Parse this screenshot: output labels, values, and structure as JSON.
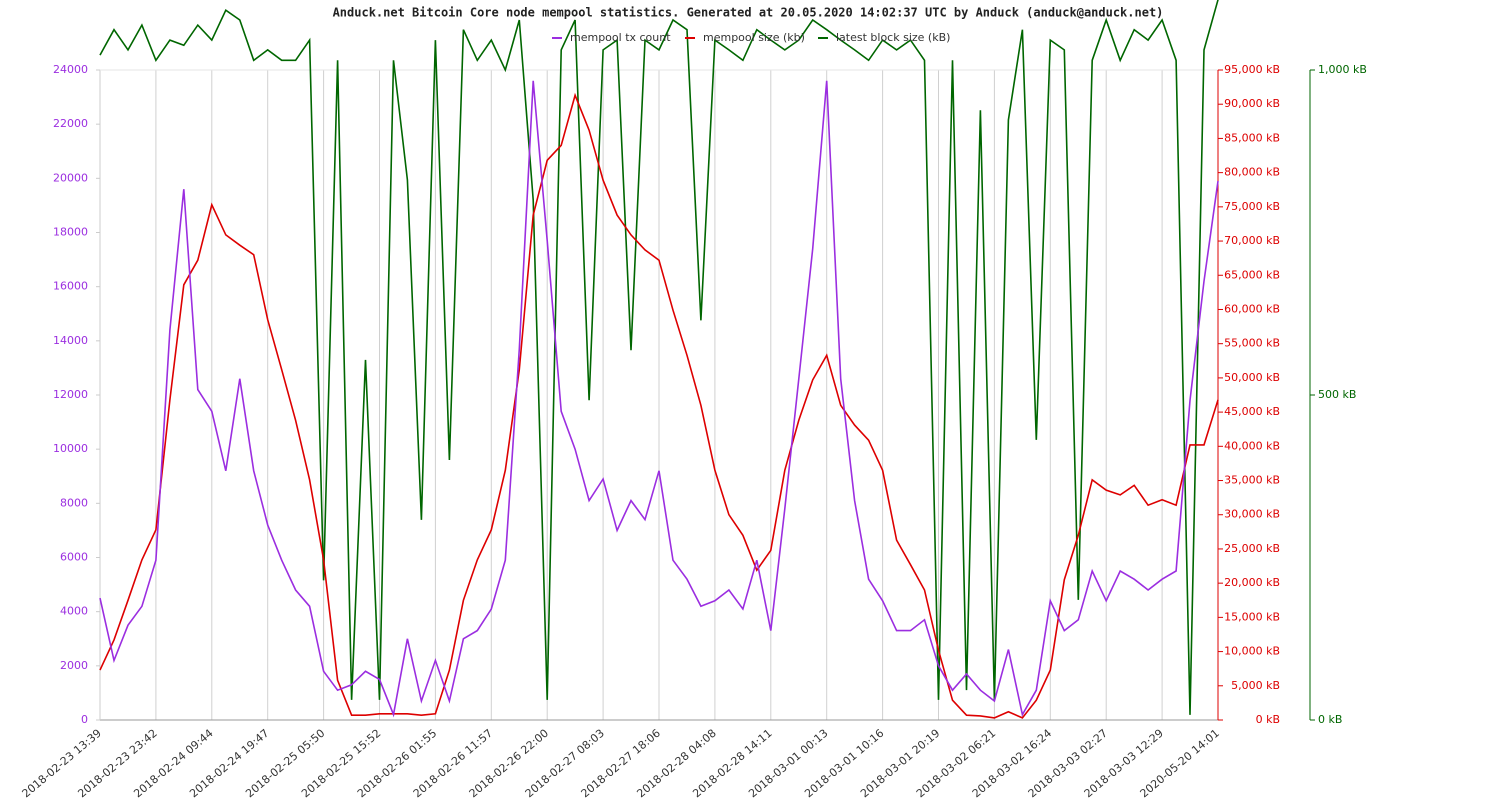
{
  "chart_data": {
    "type": "line",
    "title": "Anduck.net Bitcoin Core node mempool statistics. Generated at 20.05.2020 14:02:37 UTC by Anduck (anduck@anduck.net)",
    "categories": [
      "2018-02-23 13:39",
      null,
      null,
      null,
      "2018-02-23 23:42",
      null,
      null,
      null,
      "2018-02-24 09:44",
      null,
      null,
      null,
      "2018-02-24 19:47",
      null,
      null,
      null,
      "2018-02-25 05:50",
      null,
      null,
      null,
      "2018-02-25 15:52",
      null,
      null,
      null,
      "2018-02-26 01:55",
      null,
      null,
      null,
      "2018-02-26 11:57",
      null,
      null,
      null,
      "2018-02-26 22:00",
      null,
      null,
      null,
      "2018-02-27 08:03",
      null,
      null,
      null,
      "2018-02-27 18:06",
      null,
      null,
      null,
      "2018-02-28 04:08",
      null,
      null,
      null,
      "2018-02-28 14:11",
      null,
      null,
      null,
      "2018-03-01 00:13",
      null,
      null,
      null,
      "2018-03-01 10:16",
      null,
      null,
      null,
      "2018-03-01 20:19",
      null,
      null,
      null,
      "2018-03-02 06:21",
      null,
      null,
      null,
      "2018-03-02 16:24",
      null,
      null,
      null,
      "2018-03-03 02:27",
      null,
      null,
      null,
      "2018-03-03 12:29",
      null,
      null,
      null,
      "2020-05-20 14:01"
    ],
    "series": [
      {
        "name": "mempool tx count",
        "color": "#9b2ee0",
        "axis": "y",
        "values": [
          4500,
          2200,
          3500,
          4200,
          5900,
          14400,
          19600,
          12200,
          11400,
          9200,
          12600,
          9200,
          7200,
          5900,
          4800,
          4200,
          1800,
          1100,
          1300,
          1800,
          1500,
          200,
          3000,
          700,
          2200,
          700,
          3000,
          3300,
          4100,
          5900,
          13700,
          23600,
          17700,
          11400,
          10000,
          8100,
          8900,
          7000,
          8100,
          7400,
          9200,
          5900,
          5200,
          4200,
          4400,
          4800,
          4100,
          5900,
          3300,
          7800,
          12600,
          17400,
          23600,
          12600,
          8100,
          5200,
          4400,
          3300,
          3300,
          3700,
          2000,
          1100,
          1700,
          1100,
          700,
          2600,
          200,
          1100,
          4400,
          3300,
          3700,
          5500,
          4400,
          5500,
          5200,
          4800,
          5200,
          5500,
          11800,
          16200,
          19900
        ]
      },
      {
        "name": "mempool size (kb)",
        "color": "#dd0000",
        "axis": "y2",
        "values": [
          7300,
          11700,
          17500,
          23400,
          27800,
          46800,
          63600,
          67200,
          75300,
          70900,
          69400,
          68000,
          58500,
          51200,
          43800,
          35100,
          23400,
          5800,
          700,
          700,
          900,
          900,
          900,
          700,
          900,
          7300,
          17500,
          23400,
          27800,
          36500,
          51200,
          73800,
          81800,
          84000,
          91300,
          86200,
          78900,
          73800,
          70900,
          68700,
          67200,
          59900,
          53300,
          46000,
          36500,
          30000,
          27000,
          21900,
          24800,
          36500,
          43800,
          49700,
          53300,
          46000,
          43100,
          40900,
          36500,
          26300,
          22700,
          19000,
          10200,
          2900,
          700,
          600,
          300,
          1200,
          300,
          2900,
          7300,
          20500,
          27000,
          35100,
          33600,
          32900,
          34300,
          31400,
          32200,
          31400,
          40200,
          40200,
          46800
        ]
      },
      {
        "name": "latest block size (kB)",
        "color": "#006600",
        "axis": "y3",
        "values": [
          1023,
          1062,
          1031,
          1069,
          1015,
          1046,
          1038,
          1069,
          1046,
          1092,
          1077,
          1015,
          1031,
          1015,
          1015,
          1046,
          215,
          1015,
          31,
          554,
          31,
          1015,
          831,
          308,
          1046,
          400,
          1062,
          1015,
          1046,
          1000,
          1077,
          800,
          31,
          1031,
          1077,
          492,
          1031,
          1046,
          569,
          1046,
          1031,
          1077,
          1062,
          615,
          1046,
          1031,
          1015,
          1062,
          1046,
          1031,
          1046,
          1077,
          1062,
          1046,
          1031,
          1015,
          1046,
          1031,
          1046,
          1015,
          31,
          1015,
          46,
          938,
          31,
          923,
          1062,
          431,
          1046,
          1031,
          185,
          1015,
          1077,
          1015,
          1062,
          1046,
          1077,
          1015,
          8,
          1031,
          1108
        ]
      }
    ],
    "ylim": [
      0,
      24000
    ],
    "yticks": [
      0,
      2000,
      4000,
      6000,
      8000,
      10000,
      12000,
      14000,
      16000,
      18000,
      20000,
      22000,
      24000
    ],
    "y2lim": [
      0,
      95000
    ],
    "y2ticks": [
      {
        "value": 0,
        "label": "0 kB"
      },
      {
        "value": 5000,
        "label": "5,000 kB"
      },
      {
        "value": 10000,
        "label": "10,000 kB"
      },
      {
        "value": 15000,
        "label": "15,000 kB"
      },
      {
        "value": 20000,
        "label": "20,000 kB"
      },
      {
        "value": 25000,
        "label": "25,000 kB"
      },
      {
        "value": 30000,
        "label": "30,000 kB"
      },
      {
        "value": 35000,
        "label": "35,000 kB"
      },
      {
        "value": 40000,
        "label": "40,000 kB"
      },
      {
        "value": 45000,
        "label": "45,000 kB"
      },
      {
        "value": 50000,
        "label": "50,000 kB"
      },
      {
        "value": 55000,
        "label": "55,000 kB"
      },
      {
        "value": 60000,
        "label": "60,000 kB"
      },
      {
        "value": 65000,
        "label": "65,000 kB"
      },
      {
        "value": 70000,
        "label": "70,000 kB"
      },
      {
        "value": 75000,
        "label": "75,000 kB"
      },
      {
        "value": 80000,
        "label": "80,000 kB"
      },
      {
        "value": 85000,
        "label": "85,000 kB"
      },
      {
        "value": 90000,
        "label": "90,000 kB"
      },
      {
        "value": 95000,
        "label": "95,000 kB"
      }
    ],
    "y3lim": [
      0,
      1000
    ],
    "y3ticks": [
      {
        "value": 0,
        "label": "0 kB"
      },
      {
        "value": 500,
        "label": "500 kB"
      },
      {
        "value": 1000,
        "label": "1,000 kB"
      }
    ],
    "grid": "x",
    "legend": "top"
  }
}
